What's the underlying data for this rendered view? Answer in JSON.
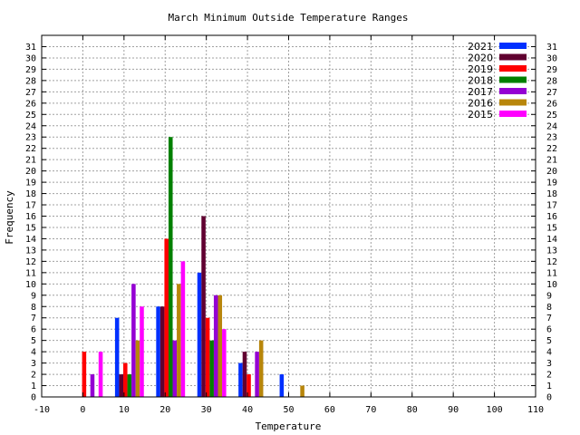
{
  "chart_data": {
    "type": "bar",
    "title": "March Minimum Outside Temperature Ranges",
    "xlabel": "Temperature",
    "ylabel": "Frequency",
    "xlim": [
      -10,
      110
    ],
    "ylim": [
      0,
      32
    ],
    "xticks": [
      "-10",
      "0",
      "10",
      "20",
      "30",
      "40",
      "50",
      "60",
      "70",
      "80",
      "90",
      "100",
      "110"
    ],
    "yticks": [
      "0",
      "1",
      "2",
      "3",
      "4",
      "5",
      "6",
      "7",
      "8",
      "9",
      "10",
      "11",
      "12",
      "13",
      "14",
      "15",
      "16",
      "17",
      "18",
      "19",
      "20",
      "21",
      "22",
      "23",
      "24",
      "25",
      "26",
      "27",
      "28",
      "29",
      "30",
      "31"
    ],
    "bin_centers": [
      0,
      10,
      20,
      30,
      40,
      50
    ],
    "grid": true,
    "legend_position": "top-right",
    "series": [
      {
        "name": "2021",
        "color": "#0030ff",
        "values": [
          0,
          7,
          8,
          11,
          3,
          2
        ]
      },
      {
        "name": "2020",
        "color": "#600030",
        "values": [
          0,
          2,
          8,
          16,
          4,
          0
        ]
      },
      {
        "name": "2019",
        "color": "#ff0000",
        "values": [
          4,
          3,
          14,
          7,
          2,
          0
        ]
      },
      {
        "name": "2018",
        "color": "#008000",
        "values": [
          0,
          2,
          23,
          5,
          0,
          0
        ]
      },
      {
        "name": "2017",
        "color": "#9400d3",
        "values": [
          2,
          10,
          5,
          9,
          4,
          0
        ]
      },
      {
        "name": "2016",
        "color": "#b8860b",
        "values": [
          0,
          5,
          10,
          9,
          5,
          1
        ]
      },
      {
        "name": "2015",
        "color": "#ff00ff",
        "values": [
          4,
          8,
          12,
          6,
          0,
          0
        ]
      }
    ]
  }
}
